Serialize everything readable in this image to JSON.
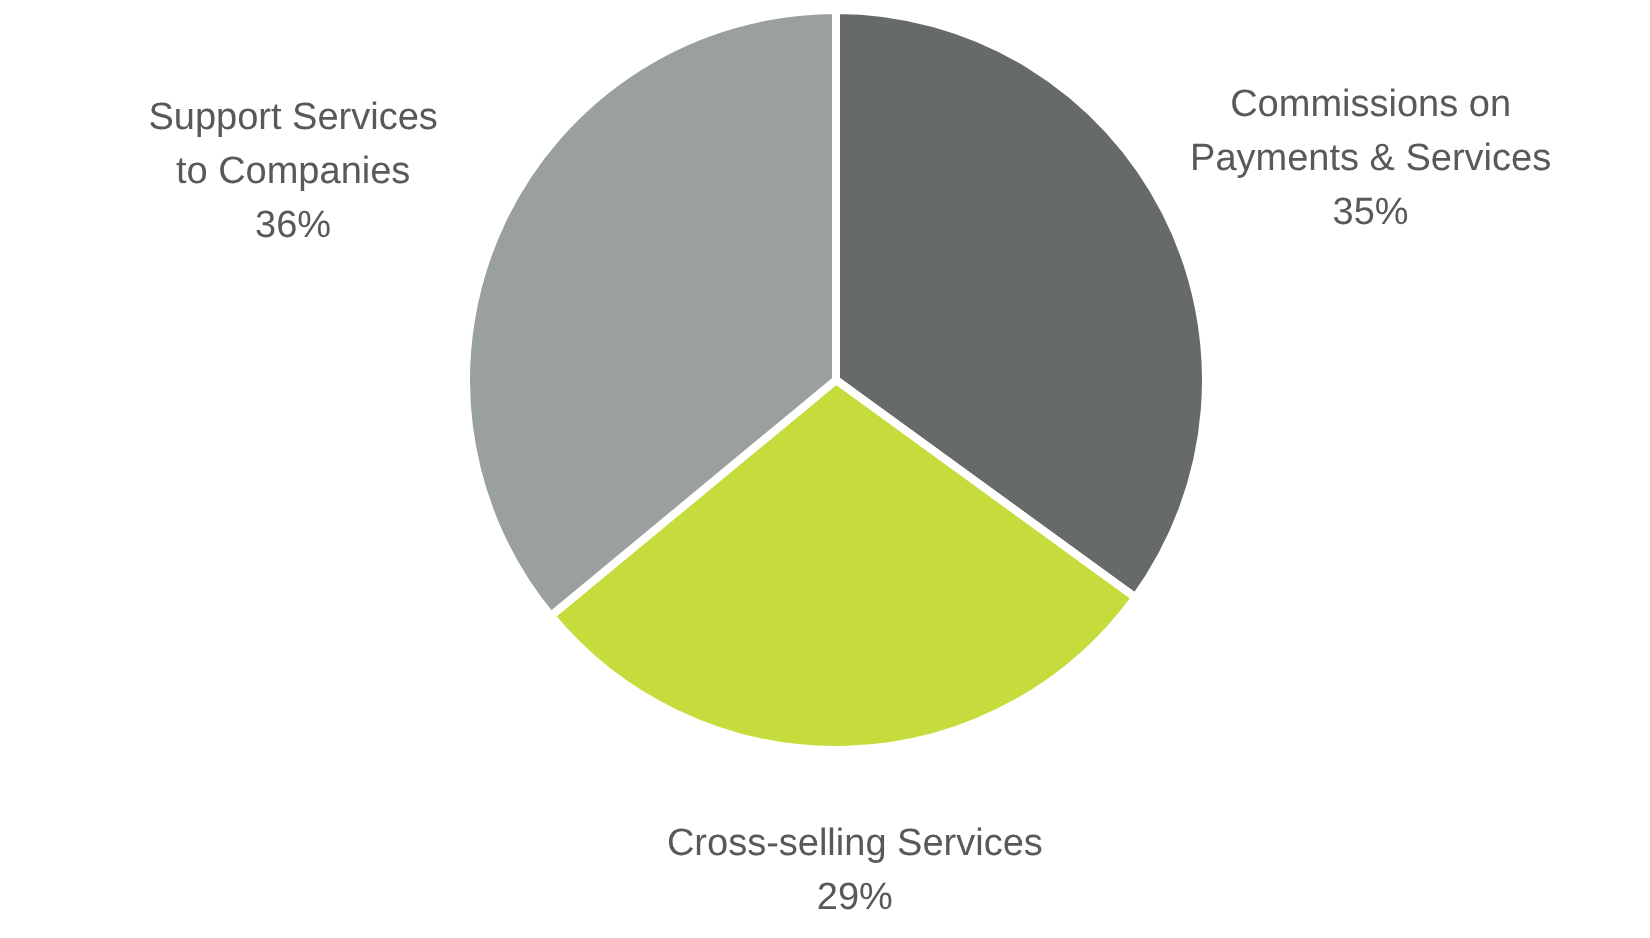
{
  "chart_data": {
    "type": "pie",
    "categories": [
      "Commissions on\nPayments & Services",
      "Cross-selling Services",
      "Support Services\nto Companies"
    ],
    "values": [
      35,
      29,
      36
    ],
    "value_labels": [
      "35%",
      "29%",
      "36%"
    ],
    "colors": [
      "#666b6a",
      "#c5dc3c",
      "#9aa09f"
    ]
  }
}
